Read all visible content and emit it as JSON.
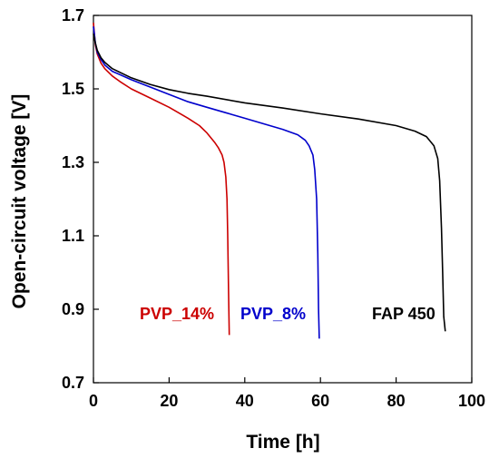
{
  "chart_data": {
    "type": "line",
    "title": "",
    "xlabel": "Time [h]",
    "ylabel": "Open-circuit voltage [V]",
    "xlim": [
      0,
      100
    ],
    "ylim": [
      0.7,
      1.7
    ],
    "x_ticks": [
      "0",
      "20",
      "40",
      "60",
      "80",
      "100"
    ],
    "y_ticks": [
      "0.7",
      "0.9",
      "1.1",
      "1.3",
      "1.5",
      "1.7"
    ],
    "grid": false,
    "series": [
      {
        "name": "PVP_14%",
        "color": "#cc0000",
        "x": [
          0,
          0.5,
          1,
          2,
          3,
          5,
          7,
          10,
          15,
          20,
          25,
          28,
          30,
          32,
          33,
          34,
          34.5,
          35,
          35.3,
          35.5,
          35.7,
          35.9
        ],
        "y": [
          1.68,
          1.62,
          1.595,
          1.57,
          1.555,
          1.535,
          1.52,
          1.5,
          1.475,
          1.45,
          1.42,
          1.4,
          1.38,
          1.355,
          1.34,
          1.32,
          1.3,
          1.26,
          1.2,
          1.1,
          0.95,
          0.83
        ]
      },
      {
        "name": "PVP_8%",
        "color": "#0000cc",
        "x": [
          0,
          0.5,
          1,
          2,
          3,
          5,
          10,
          15,
          20,
          25,
          30,
          35,
          40,
          45,
          50,
          54,
          56,
          57,
          58,
          58.5,
          59,
          59.3,
          59.5,
          59.7
        ],
        "y": [
          1.67,
          1.625,
          1.6,
          1.58,
          1.565,
          1.548,
          1.525,
          1.505,
          1.485,
          1.465,
          1.45,
          1.435,
          1.42,
          1.405,
          1.39,
          1.375,
          1.36,
          1.345,
          1.32,
          1.28,
          1.2,
          1.05,
          0.9,
          0.82
        ]
      },
      {
        "name": "FAP 450",
        "color": "#000000",
        "x": [
          0,
          0.5,
          1,
          2,
          3,
          5,
          10,
          15,
          20,
          25,
          30,
          40,
          50,
          60,
          70,
          80,
          85,
          88,
          90,
          91,
          91.5,
          92,
          92.3,
          92.6,
          93
        ],
        "y": [
          1.65,
          1.625,
          1.605,
          1.585,
          1.572,
          1.555,
          1.53,
          1.512,
          1.498,
          1.488,
          1.48,
          1.462,
          1.448,
          1.432,
          1.418,
          1.4,
          1.385,
          1.37,
          1.345,
          1.31,
          1.25,
          1.12,
          1.0,
          0.88,
          0.84
        ]
      }
    ]
  }
}
